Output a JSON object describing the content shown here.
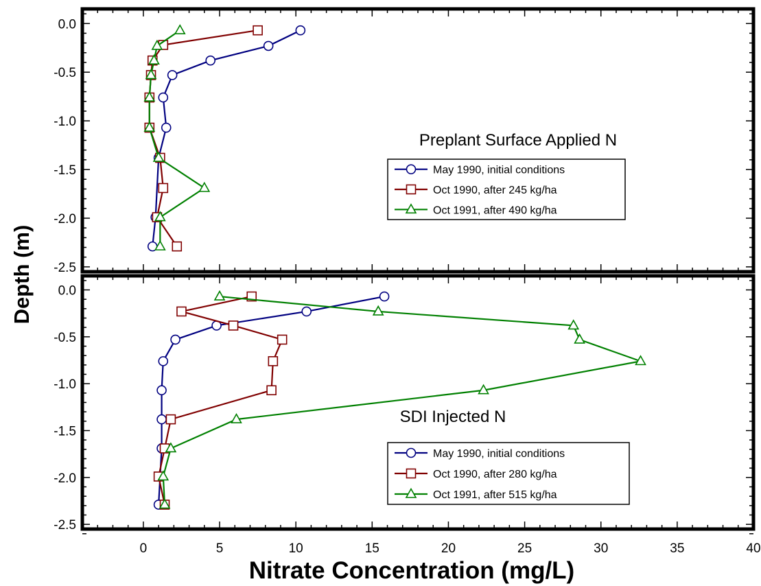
{
  "figure": {
    "ylabel": "Depth (m)",
    "xlabel": "Nitrate Concentration (mg/L)"
  },
  "chart_data": [
    {
      "type": "line",
      "title": "Preplant Surface Applied N",
      "xlim": [
        -4,
        40
      ],
      "ylim": [
        -2.55,
        0.15
      ],
      "xticks": [
        0,
        5,
        10,
        15,
        20,
        25,
        30,
        35,
        40
      ],
      "yticks": [
        0.0,
        -0.5,
        -1.0,
        -1.5,
        -2.0,
        -2.5
      ],
      "ytick_labels": [
        "0.0",
        "-0.5",
        "-1.0",
        "-1.5",
        "-2.0",
        "-2.5"
      ],
      "legend_position": "center-right",
      "series": [
        {
          "name": "May 1990, initial conditions",
          "color": "#000080",
          "marker": "circle",
          "x": [
            10.3,
            8.2,
            4.4,
            1.9,
            1.3,
            1.5,
            1.0,
            0.8,
            0.6
          ],
          "y": [
            -0.07,
            -0.23,
            -0.38,
            -0.53,
            -0.76,
            -1.07,
            -1.38,
            -1.99,
            -2.29
          ]
        },
        {
          "name": "Oct 1990, after 245 kg/ha",
          "color": "#800000",
          "marker": "square",
          "x": [
            7.5,
            1.3,
            0.6,
            0.5,
            0.4,
            0.4,
            1.1,
            1.3,
            0.9,
            2.2
          ],
          "y": [
            -0.07,
            -0.22,
            -0.38,
            -0.53,
            -0.76,
            -1.07,
            -1.38,
            -1.69,
            -1.99,
            -2.29
          ]
        },
        {
          "name": "Oct 1991, after 490 kg/ha",
          "color": "#008000",
          "marker": "triangle",
          "x": [
            2.4,
            0.9,
            0.7,
            0.5,
            0.4,
            0.4,
            1.0,
            4.0,
            1.1,
            1.1
          ],
          "y": [
            -0.07,
            -0.23,
            -0.38,
            -0.53,
            -0.76,
            -1.07,
            -1.38,
            -1.69,
            -1.99,
            -2.29
          ]
        }
      ]
    },
    {
      "type": "line",
      "title": "SDI Injected N",
      "xlim": [
        -4,
        40
      ],
      "ylim": [
        -2.55,
        0.15
      ],
      "xticks": [
        0,
        5,
        10,
        15,
        20,
        25,
        30,
        35,
        40
      ],
      "xtick_labels": [
        "0",
        "5",
        "10",
        "15",
        "20",
        "25",
        "30",
        "35",
        "40"
      ],
      "yticks": [
        0.0,
        -0.5,
        -1.0,
        -1.5,
        -2.0,
        -2.5
      ],
      "ytick_labels": [
        "0.0",
        "-0.5",
        "-1.0",
        "-1.5",
        "-2.0",
        "-2.5"
      ],
      "legend_position": "bottom-right",
      "series": [
        {
          "name": "May 1990, initial conditions",
          "color": "#000080",
          "marker": "circle",
          "x": [
            15.8,
            10.7,
            4.8,
            2.1,
            1.3,
            1.2,
            1.2,
            1.2,
            1.0
          ],
          "y": [
            -0.07,
            -0.23,
            -0.38,
            -0.53,
            -0.76,
            -1.07,
            -1.38,
            -1.69,
            -2.29
          ]
        },
        {
          "name": "Oct 1990, after 280 kg/ha",
          "color": "#800000",
          "marker": "square",
          "x": [
            7.1,
            2.5,
            5.9,
            9.1,
            8.5,
            8.4,
            1.8,
            1.4,
            1.0,
            1.4
          ],
          "y": [
            -0.07,
            -0.23,
            -0.38,
            -0.53,
            -0.76,
            -1.07,
            -1.38,
            -1.69,
            -1.99,
            -2.29
          ]
        },
        {
          "name": "Oct 1991, after 515 kg/ha",
          "color": "#008000",
          "marker": "triangle",
          "x": [
            5.0,
            15.4,
            28.2,
            28.6,
            32.6,
            22.3,
            6.1,
            1.8,
            1.3,
            1.4
          ],
          "y": [
            -0.07,
            -0.23,
            -0.38,
            -0.53,
            -0.76,
            -1.07,
            -1.38,
            -1.69,
            -1.99,
            -2.29
          ]
        }
      ]
    }
  ]
}
